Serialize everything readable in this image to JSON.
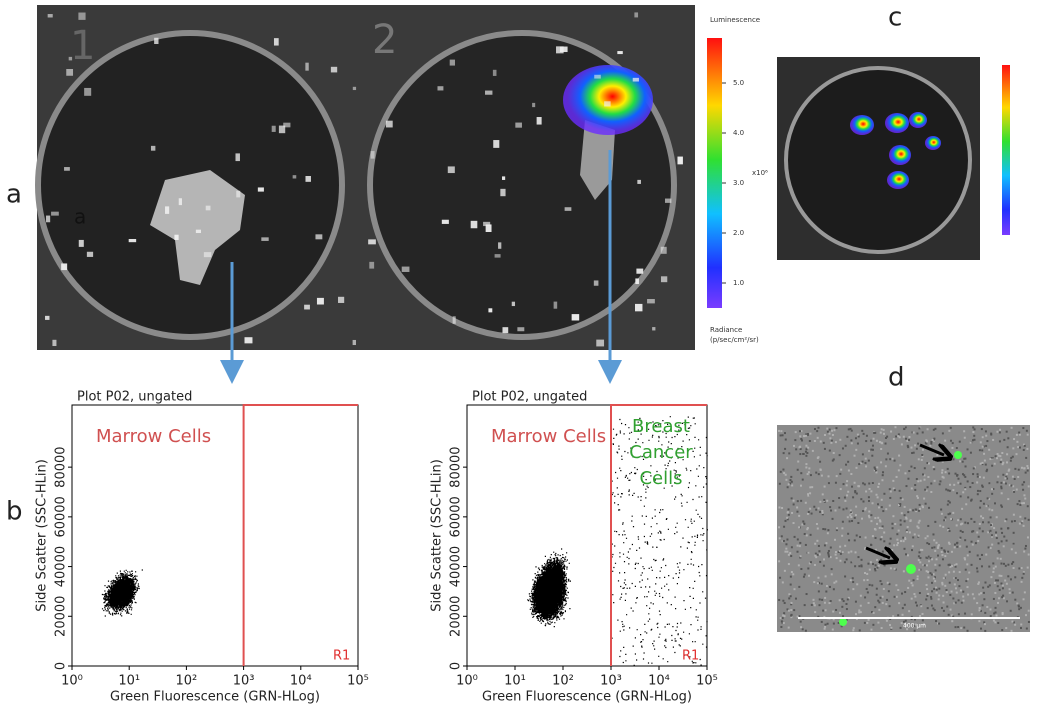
{
  "panel_labels": {
    "a": "a",
    "a_inner": "a",
    "b": "b",
    "c": "c",
    "d": "d"
  },
  "panel_a": {
    "well_labels": [
      "1",
      "2"
    ],
    "colorbar": {
      "title": "Luminescence",
      "multiplier": "x10⁶",
      "unit_title": "Radiance",
      "unit": "(p/sec/cm²/sr)",
      "lim": [
        0.5,
        5.9
      ],
      "ticks": [
        {
          "value": 1,
          "label": "1.0"
        },
        {
          "value": 2,
          "label": "2.0"
        },
        {
          "value": 3,
          "label": "3.0"
        },
        {
          "value": 4,
          "label": "4.0"
        },
        {
          "value": 5,
          "label": "5.0"
        }
      ]
    }
  },
  "plots": [
    {
      "title": "Plot P02, ungated",
      "y_label": "Side Scatter (SSC-HLin)",
      "x_label": "Green Fluorescence (GRN-HLog)",
      "gate_label": "R1",
      "gate_x": 1000,
      "left_label": "Marrow Cells",
      "xlim": [
        1,
        100000
      ],
      "ylim": [
        0,
        105000
      ],
      "xticks": [
        {
          "value": 1,
          "label": "10⁰"
        },
        {
          "value": 10,
          "label": "10¹"
        },
        {
          "value": 100,
          "label": "10²"
        },
        {
          "value": 1000,
          "label": "10³"
        },
        {
          "value": 10000,
          "label": "10⁴"
        },
        {
          "value": 100000,
          "label": "10⁵"
        }
      ],
      "yticks": [
        0,
        20000,
        40000,
        60000,
        80000
      ]
    },
    {
      "title": "Plot P02, ungated",
      "y_label": "Side Scatter (SSC-HLin)",
      "x_label": "Green Fluorescence (GRN-HLog)",
      "gate_label": "R1",
      "gate_x": 1000,
      "left_label": "Marrow Cells",
      "right_label": [
        "Breast",
        "Cancer",
        "Cells"
      ],
      "xlim": [
        1,
        100000
      ],
      "ylim": [
        0,
        105000
      ],
      "xticks": [
        {
          "value": 1,
          "label": "10⁰"
        },
        {
          "value": 10,
          "label": "10¹"
        },
        {
          "value": 100,
          "label": "10²"
        },
        {
          "value": 1000,
          "label": "10³"
        },
        {
          "value": 10000,
          "label": "10⁴"
        },
        {
          "value": 100000,
          "label": "10⁵"
        }
      ],
      "yticks": [
        0,
        20000,
        40000,
        60000,
        80000
      ]
    }
  ],
  "panel_d": {
    "scale_label": "400 µm"
  }
}
